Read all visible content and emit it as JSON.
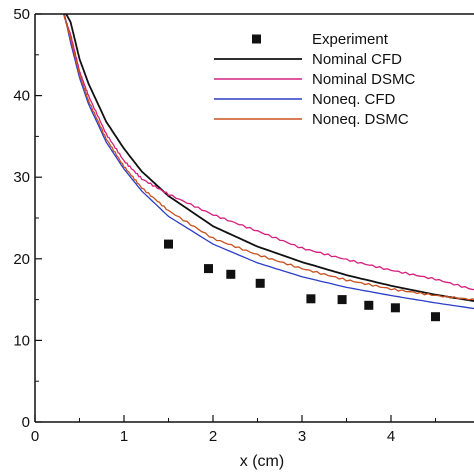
{
  "chart_data": {
    "type": "line",
    "title": "",
    "xlabel": "x (cm)",
    "ylabel": "",
    "xlim": [
      0,
      5
    ],
    "ylim": [
      0,
      50
    ],
    "x_ticks": [
      "0",
      "1",
      "2",
      "3",
      "4"
    ],
    "y_ticks": [
      "0",
      "10",
      "20",
      "30",
      "40",
      "50"
    ],
    "grid": false,
    "legend_position": "top-right",
    "experiment": {
      "name": "Experiment",
      "color": "#111111",
      "x": [
        1.5,
        1.95,
        2.2,
        2.53,
        3.1,
        3.45,
        3.75,
        4.05,
        4.5
      ],
      "y": [
        21.8,
        18.8,
        18.1,
        17.0,
        15.1,
        15.0,
        14.3,
        14.0,
        12.9
      ]
    },
    "series": [
      {
        "name": "Nominal CFD",
        "color": "#111111",
        "x": [
          0.35,
          0.4,
          0.5,
          0.6,
          0.8,
          1.0,
          1.2,
          1.5,
          2.0,
          2.5,
          3.0,
          3.5,
          4.0,
          4.5,
          5.0
        ],
        "y": [
          50,
          49.0,
          44.5,
          41.5,
          36.8,
          33.5,
          30.7,
          27.7,
          24.0,
          21.5,
          19.6,
          18.0,
          16.7,
          15.6,
          14.7
        ]
      },
      {
        "name": "Nominal DSMC",
        "color": "#d4207e",
        "x": [
          0.32,
          0.4,
          0.5,
          0.6,
          0.8,
          1.0,
          1.2,
          1.5,
          2.0,
          2.5,
          3.0,
          3.5,
          4.0,
          4.5,
          5.0
        ],
        "y": [
          50,
          47.5,
          43.0,
          40.0,
          35.3,
          32.0,
          29.8,
          27.9,
          25.4,
          23.4,
          21.3,
          19.9,
          18.6,
          17.5,
          16.0
        ]
      },
      {
        "name": "Noneq. CFD",
        "color": "#2b3ec8",
        "x": [
          0.33,
          0.4,
          0.5,
          0.6,
          0.8,
          1.0,
          1.2,
          1.5,
          2.0,
          2.5,
          3.0,
          3.5,
          4.0,
          4.5,
          5.0
        ],
        "y": [
          50,
          46.5,
          42.2,
          39.0,
          34.3,
          31.0,
          28.3,
          25.2,
          21.8,
          19.5,
          17.8,
          16.5,
          15.5,
          14.6,
          13.8
        ]
      },
      {
        "name": "Noneq. DSMC",
        "color": "#c8501e",
        "x": [
          0.32,
          0.4,
          0.5,
          0.6,
          0.8,
          1.0,
          1.2,
          1.5,
          2.0,
          2.5,
          3.0,
          3.5,
          4.0,
          4.5,
          5.0
        ],
        "y": [
          50,
          47.0,
          42.6,
          39.4,
          34.7,
          31.3,
          28.7,
          25.9,
          22.5,
          20.5,
          18.8,
          17.4,
          16.3,
          15.5,
          14.9
        ]
      }
    ]
  }
}
